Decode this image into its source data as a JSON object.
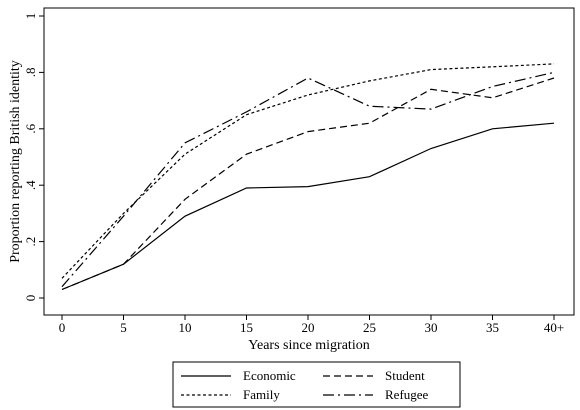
{
  "chart_data": {
    "type": "line",
    "title": "",
    "xlabel": "Years since migration",
    "ylabel": "Proportion reporting British identity",
    "categories": [
      "0",
      "5",
      "10",
      "15",
      "20",
      "25",
      "30",
      "35",
      "40+"
    ],
    "ylim": [
      0,
      1
    ],
    "yticks": [
      "0",
      ".2",
      ".4",
      ".6",
      ".8",
      "1"
    ],
    "grid": false,
    "legend_position": "bottom",
    "series": [
      {
        "name": "Economic",
        "dash": "solid",
        "values": [
          0.03,
          0.12,
          0.29,
          0.39,
          0.395,
          0.43,
          0.53,
          0.6,
          0.62
        ]
      },
      {
        "name": "Student",
        "dash": "dashed",
        "values": [
          0.03,
          0.12,
          0.35,
          0.51,
          0.59,
          0.62,
          0.74,
          0.71,
          0.78
        ]
      },
      {
        "name": "Family",
        "dash": "dotted",
        "values": [
          0.07,
          0.3,
          0.51,
          0.65,
          0.72,
          0.77,
          0.81,
          0.82,
          0.83
        ]
      },
      {
        "name": "Refugee",
        "dash": "dashdot",
        "values": [
          0.04,
          0.29,
          0.55,
          0.66,
          0.78,
          0.68,
          0.67,
          0.75,
          0.8
        ]
      }
    ]
  }
}
